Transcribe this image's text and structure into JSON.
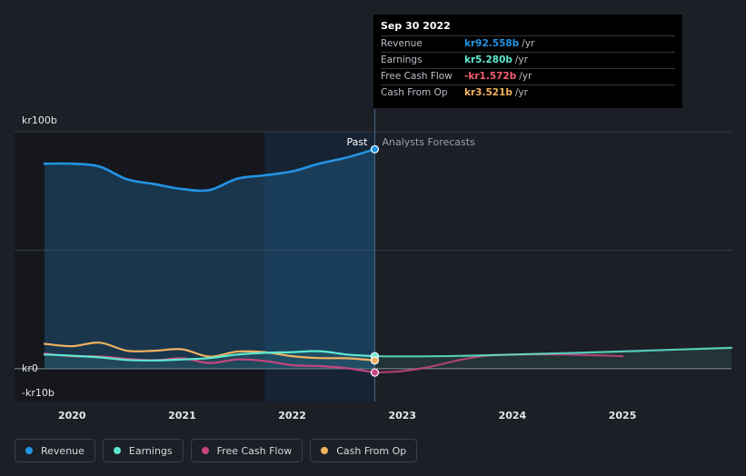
{
  "tooltip": {
    "date": "Sep 30 2022",
    "rows": [
      {
        "label": "Revenue",
        "value": "kr92.558b",
        "unit": "/yr",
        "color": "#2394e4"
      },
      {
        "label": "Earnings",
        "value": "kr5.280b",
        "unit": "/yr",
        "color": "#5ee8cf"
      },
      {
        "label": "Free Cash Flow",
        "value": "-kr1.572b",
        "unit": "/yr",
        "color": "#f25c6e"
      },
      {
        "label": "Cash From Op",
        "value": "kr3.521b",
        "unit": "/yr",
        "color": "#f2b160"
      }
    ]
  },
  "labels": {
    "past": "Past",
    "forecast": "Analysts Forecasts"
  },
  "legend": [
    {
      "label": "Revenue",
      "color": "#2394e4"
    },
    {
      "label": "Earnings",
      "color": "#5ee8cf"
    },
    {
      "label": "Free Cash Flow",
      "color": "#c4457f"
    },
    {
      "label": "Cash From Op",
      "color": "#f2b160"
    }
  ],
  "chart_data": {
    "type": "line",
    "y_unit": "kr billion",
    "ylim": [
      -10,
      100
    ],
    "y_ticks": [
      {
        "v": 100,
        "label": "kr100b"
      },
      {
        "v": 0,
        "label": "kr0"
      },
      {
        "v": -10,
        "label": "-kr10b"
      }
    ],
    "xlim": [
      2019.6,
      2025.99
    ],
    "x_ticks": [
      {
        "v": 2020,
        "label": "2020"
      },
      {
        "v": 2021,
        "label": "2021"
      },
      {
        "v": 2022,
        "label": "2022"
      },
      {
        "v": 2023,
        "label": "2023"
      },
      {
        "v": 2024,
        "label": "2024"
      },
      {
        "v": 2025,
        "label": "2025"
      }
    ],
    "past_end": 2022.75,
    "highlight_start": 2021.75,
    "series": [
      {
        "name": "Revenue",
        "color": "#2394e4",
        "segment": "past",
        "x": [
          2019.75,
          2020.0,
          2020.25,
          2020.5,
          2020.75,
          2021.0,
          2021.25,
          2021.5,
          2021.75,
          2022.0,
          2022.25,
          2022.5,
          2022.75
        ],
        "y": [
          86.5,
          86.5,
          85.3,
          79.9,
          77.9,
          75.8,
          75.4,
          80.2,
          81.6,
          83.3,
          86.6,
          89.2,
          92.6
        ]
      },
      {
        "name": "Earnings",
        "color": "#5ee8cf",
        "segment": "past",
        "x": [
          2019.75,
          2020.0,
          2020.25,
          2020.5,
          2020.75,
          2021.0,
          2021.25,
          2021.5,
          2021.75,
          2022.0,
          2022.25,
          2022.5,
          2022.75
        ],
        "y": [
          6.0,
          5.5,
          4.8,
          3.7,
          3.5,
          3.9,
          4.5,
          6.0,
          6.7,
          7.0,
          7.4,
          6.0,
          5.3
        ]
      },
      {
        "name": "Earnings forecast",
        "color": "#5ee8cf",
        "segment": "forecast",
        "x": [
          2022.75,
          2023.0,
          2023.5,
          2024.0,
          2024.5,
          2025.0,
          2025.5,
          2025.99
        ],
        "y": [
          5.3,
          5.2,
          5.4,
          6.0,
          6.6,
          7.3,
          8.1,
          8.8
        ]
      },
      {
        "name": "Free Cash Flow",
        "color": "#c4457f",
        "segment": "past",
        "x": [
          2019.75,
          2020.0,
          2020.25,
          2020.5,
          2020.75,
          2021.0,
          2021.25,
          2021.5,
          2021.75,
          2022.0,
          2022.25,
          2022.5,
          2022.75
        ],
        "y": [
          6.4,
          5.3,
          5.2,
          4.2,
          3.6,
          4.4,
          2.4,
          3.9,
          3.3,
          1.5,
          1.1,
          0.2,
          -1.6
        ]
      },
      {
        "name": "Free Cash Flow forecast",
        "color": "#c4457f",
        "segment": "forecast",
        "x": [
          2022.75,
          2023.0,
          2023.25,
          2023.5,
          2023.75,
          2024.0,
          2024.5,
          2025.0
        ],
        "y": [
          -1.6,
          -1.0,
          0.8,
          3.5,
          5.4,
          6.0,
          6.0,
          5.3
        ]
      },
      {
        "name": "Cash From Op",
        "color": "#f2b160",
        "segment": "past",
        "x": [
          2019.75,
          2020.0,
          2020.25,
          2020.5,
          2020.75,
          2021.0,
          2021.25,
          2021.5,
          2021.75,
          2022.0,
          2022.25,
          2022.5,
          2022.75
        ],
        "y": [
          10.5,
          9.5,
          11.0,
          7.6,
          7.6,
          8.2,
          5.1,
          7.2,
          7.0,
          5.3,
          4.5,
          4.4,
          3.5
        ]
      }
    ]
  }
}
